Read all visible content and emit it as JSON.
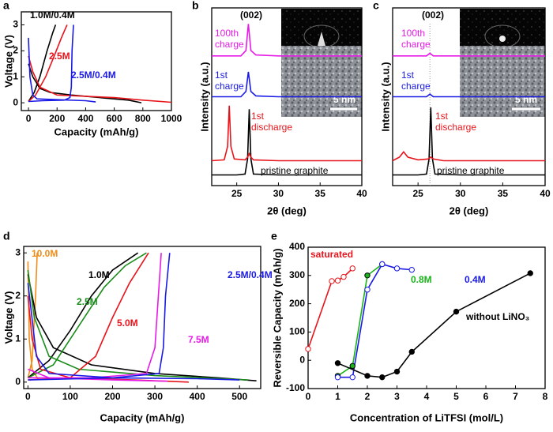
{
  "chart_data": [
    {
      "panel": "a",
      "type": "line",
      "x_label": "Capacity (mAh/g)",
      "y_label": "Voltage (V)",
      "xlim": [
        -50,
        1000
      ],
      "ylim": [
        -0.3,
        3.5
      ],
      "xticks": [
        0,
        200,
        400,
        600,
        800,
        1000
      ],
      "yticks": [
        0,
        1,
        2,
        3
      ],
      "series": [
        {
          "name": "1.0M/0.4M",
          "color": "#000000",
          "x": [
            0,
            30,
            80,
            150,
            300,
            500,
            700,
            790,
            null,
            0,
            40,
            80,
            130,
            170,
            190
          ],
          "values": [
            1.5,
            1.0,
            0.55,
            0.4,
            0.3,
            0.2,
            0.1,
            0.0,
            null,
            0.05,
            0.4,
            1.0,
            2.0,
            2.7,
            3.0
          ]
        },
        {
          "name": "2.5M",
          "color": "#e8141b",
          "x": [
            0,
            30,
            80,
            200,
            400,
            600,
            800,
            1000,
            null,
            0,
            50,
            120,
            180,
            230,
            270
          ],
          "values": [
            1.8,
            1.2,
            0.6,
            0.3,
            0.25,
            0.2,
            0.1,
            0.02,
            null,
            0.05,
            0.3,
            1.0,
            1.8,
            2.5,
            3.0
          ]
        },
        {
          "name": "2.5M/0.4M",
          "color": "#1a1ae6",
          "x": [
            0,
            10,
            30,
            60,
            200,
            400,
            470,
            null,
            0,
            100,
            250,
            290,
            300,
            305,
            315
          ],
          "values": [
            2.5,
            1.0,
            0.3,
            0.15,
            0.12,
            0.08,
            0.03,
            null,
            0.05,
            0.08,
            0.1,
            0.2,
            0.6,
            2.0,
            3.0
          ]
        }
      ]
    },
    {
      "panel": "b",
      "type": "xrd",
      "x_label": "2θ (deg)",
      "y_label": "Intensity (a.u.)",
      "xlim": [
        22,
        40
      ],
      "ylim": [
        0,
        10
      ],
      "xticks": [
        25,
        30,
        35,
        40
      ],
      "annotations": [
        "(002)",
        "5 nm"
      ],
      "series": [
        {
          "name": "pristine graphite",
          "color": "#000000",
          "x": [
            22,
            25,
            26,
            26.3,
            26.5,
            26.7,
            27,
            30,
            35,
            40
          ],
          "values": [
            0.6,
            0.6,
            0.65,
            1.5,
            4.3,
            1.5,
            0.65,
            0.6,
            0.6,
            0.6
          ]
        },
        {
          "name": "1st discharge",
          "color": "#e8141b",
          "x": [
            22,
            23.5,
            23.9,
            24.1,
            24.3,
            24.7,
            26,
            26.3,
            26.5,
            26.7,
            27,
            30,
            35,
            40
          ],
          "values": [
            1.4,
            1.45,
            2.2,
            4.5,
            2.2,
            1.5,
            1.45,
            1.6,
            1.8,
            1.6,
            1.45,
            1.4,
            1.4,
            1.4
          ]
        },
        {
          "name": "1st charge",
          "color": "#1a1ae6",
          "x": [
            22,
            25.5,
            26.1,
            26.4,
            26.7,
            27.3,
            30,
            35,
            40
          ],
          "values": [
            5.0,
            5.0,
            5.3,
            6.4,
            5.3,
            5.05,
            5.0,
            5.0,
            5.0
          ]
        },
        {
          "name": "100th charge",
          "color": "#e61ae6",
          "x": [
            22,
            25.5,
            26.1,
            26.4,
            26.7,
            27.3,
            30,
            35,
            40
          ],
          "values": [
            7.3,
            7.3,
            7.6,
            9.1,
            7.6,
            7.35,
            7.3,
            7.3,
            7.3
          ]
        }
      ]
    },
    {
      "panel": "c",
      "type": "xrd",
      "x_label": "2θ (deg)",
      "y_label": "Intensity (a.u.)",
      "xlim": [
        22,
        40
      ],
      "ylim": [
        0,
        10
      ],
      "xticks": [
        25,
        30,
        35,
        40
      ],
      "annotations": [
        "(002)",
        "5 nm"
      ],
      "reference_x": 26.4,
      "series": [
        {
          "name": "pristine graphite",
          "color": "#000000",
          "x": [
            22,
            25,
            26,
            26.3,
            26.5,
            26.7,
            27,
            30,
            35,
            40
          ],
          "values": [
            0.6,
            0.6,
            0.65,
            1.5,
            4.4,
            1.5,
            0.65,
            0.6,
            0.6,
            0.6
          ]
        },
        {
          "name": "1st discharge",
          "color": "#e8141b",
          "x": [
            22,
            22.8,
            23.3,
            23.8,
            25,
            26.2,
            26.5,
            26.8,
            28,
            30,
            35,
            40
          ],
          "values": [
            1.4,
            1.6,
            1.9,
            1.6,
            1.45,
            1.5,
            1.6,
            1.5,
            1.4,
            1.4,
            1.4,
            1.4
          ]
        },
        {
          "name": "1st charge",
          "color": "#1a1ae6",
          "x": [
            22,
            26,
            26.4,
            26.8,
            30,
            35,
            40
          ],
          "values": [
            5.0,
            5.0,
            5.15,
            5.0,
            5.0,
            5.0,
            5.0
          ]
        },
        {
          "name": "100th charge",
          "color": "#e61ae6",
          "x": [
            22,
            26,
            26.4,
            26.8,
            30,
            35,
            40
          ],
          "values": [
            7.3,
            7.3,
            7.45,
            7.3,
            7.3,
            7.3,
            7.3
          ]
        }
      ]
    },
    {
      "panel": "d",
      "type": "line",
      "x_label": "Capacity (mAh/g)",
      "y_label": "Voltage (V)",
      "xlim": [
        -10,
        550
      ],
      "ylim": [
        -0.15,
        3.15
      ],
      "xticks": [
        0,
        100,
        200,
        300,
        400,
        500
      ],
      "yticks": [
        0,
        1,
        2,
        3
      ],
      "series": [
        {
          "name": "10.0M",
          "color": "#f08c1a",
          "x": [
            0,
            3,
            10,
            25,
            null,
            0,
            10,
            18,
            22
          ],
          "values": [
            2.8,
            1.0,
            0.3,
            0.05,
            null,
            0.1,
            0.5,
            2.0,
            3.0
          ]
        },
        {
          "name": "1.0M",
          "color": "#000000",
          "x": [
            0,
            20,
            60,
            150,
            300,
            450,
            540,
            null,
            0,
            50,
            100,
            150,
            200,
            260
          ],
          "values": [
            2.5,
            1.5,
            0.8,
            0.4,
            0.2,
            0.1,
            0.03,
            null,
            0.1,
            0.5,
            1.2,
            2.0,
            2.6,
            3.0
          ]
        },
        {
          "name": "2.5M",
          "color": "#1a8c1a",
          "x": [
            0,
            15,
            50,
            120,
            300,
            520,
            null,
            0,
            60,
            120,
            180,
            230,
            280
          ],
          "values": [
            2.6,
            1.5,
            0.6,
            0.3,
            0.15,
            0.05,
            null,
            0.1,
            0.4,
            1.3,
            2.2,
            2.7,
            3.0
          ]
        },
        {
          "name": "5.0M",
          "color": "#e8141b",
          "x": [
            0,
            10,
            30,
            100,
            250,
            380,
            null,
            0,
            100,
            160,
            200,
            240,
            285
          ],
          "values": [
            2.0,
            1.0,
            0.3,
            0.1,
            0.05,
            0.0,
            null,
            0.05,
            0.1,
            0.6,
            1.5,
            2.3,
            3.0
          ]
        },
        {
          "name": "7.5M",
          "color": "#e61ae6",
          "x": [
            0,
            50,
            200,
            330,
            null,
            0,
            150,
            280,
            300,
            315
          ],
          "values": [
            0.3,
            0.1,
            0.05,
            0.02,
            null,
            0.1,
            0.1,
            0.2,
            0.8,
            3.0
          ]
        },
        {
          "name": "2.5M/0.4M",
          "color": "#1a1ae6",
          "x": [
            0,
            20,
            50,
            200,
            400,
            500,
            null,
            0,
            200,
            310,
            320,
            325,
            335
          ],
          "values": [
            2.3,
            0.6,
            0.2,
            0.1,
            0.08,
            0.05,
            null,
            0.05,
            0.1,
            0.2,
            0.8,
            2.0,
            3.0
          ]
        }
      ]
    },
    {
      "panel": "e",
      "type": "scatter-line",
      "x_label": "Concentration of LiTFSI (mol/L)",
      "y_label": "Reversible Capacity (mAh/g)",
      "xlim": [
        0,
        8
      ],
      "ylim": [
        -100,
        400
      ],
      "xticks": [
        0,
        1,
        2,
        3,
        4,
        5,
        6,
        7,
        8
      ],
      "yticks": [
        -100,
        0,
        100,
        200,
        300,
        400
      ],
      "series": [
        {
          "name": "saturated",
          "color": "#e8141b",
          "marker": "open",
          "x": [
            0,
            0.8,
            1.0,
            1.2,
            1.5
          ],
          "values": [
            40,
            280,
            282,
            295,
            325
          ]
        },
        {
          "name": "0.8M",
          "color": "#1ab41a",
          "marker": "filled",
          "x": [
            1,
            1.5,
            2,
            2.5
          ],
          "values": [
            -55,
            -20,
            300,
            340
          ]
        },
        {
          "name": "0.4M",
          "color": "#1a1ae6",
          "marker": "open",
          "x": [
            1,
            1.5,
            2,
            2.5,
            3,
            3.5
          ],
          "values": [
            -60,
            -60,
            250,
            340,
            325,
            320
          ]
        },
        {
          "name": "without LiNO₃",
          "color": "#000000",
          "marker": "filled",
          "x": [
            1,
            2,
            2.5,
            3,
            3.5,
            5,
            7.5
          ],
          "values": [
            -10,
            -55,
            -60,
            -40,
            30,
            172,
            308
          ]
        }
      ]
    }
  ]
}
